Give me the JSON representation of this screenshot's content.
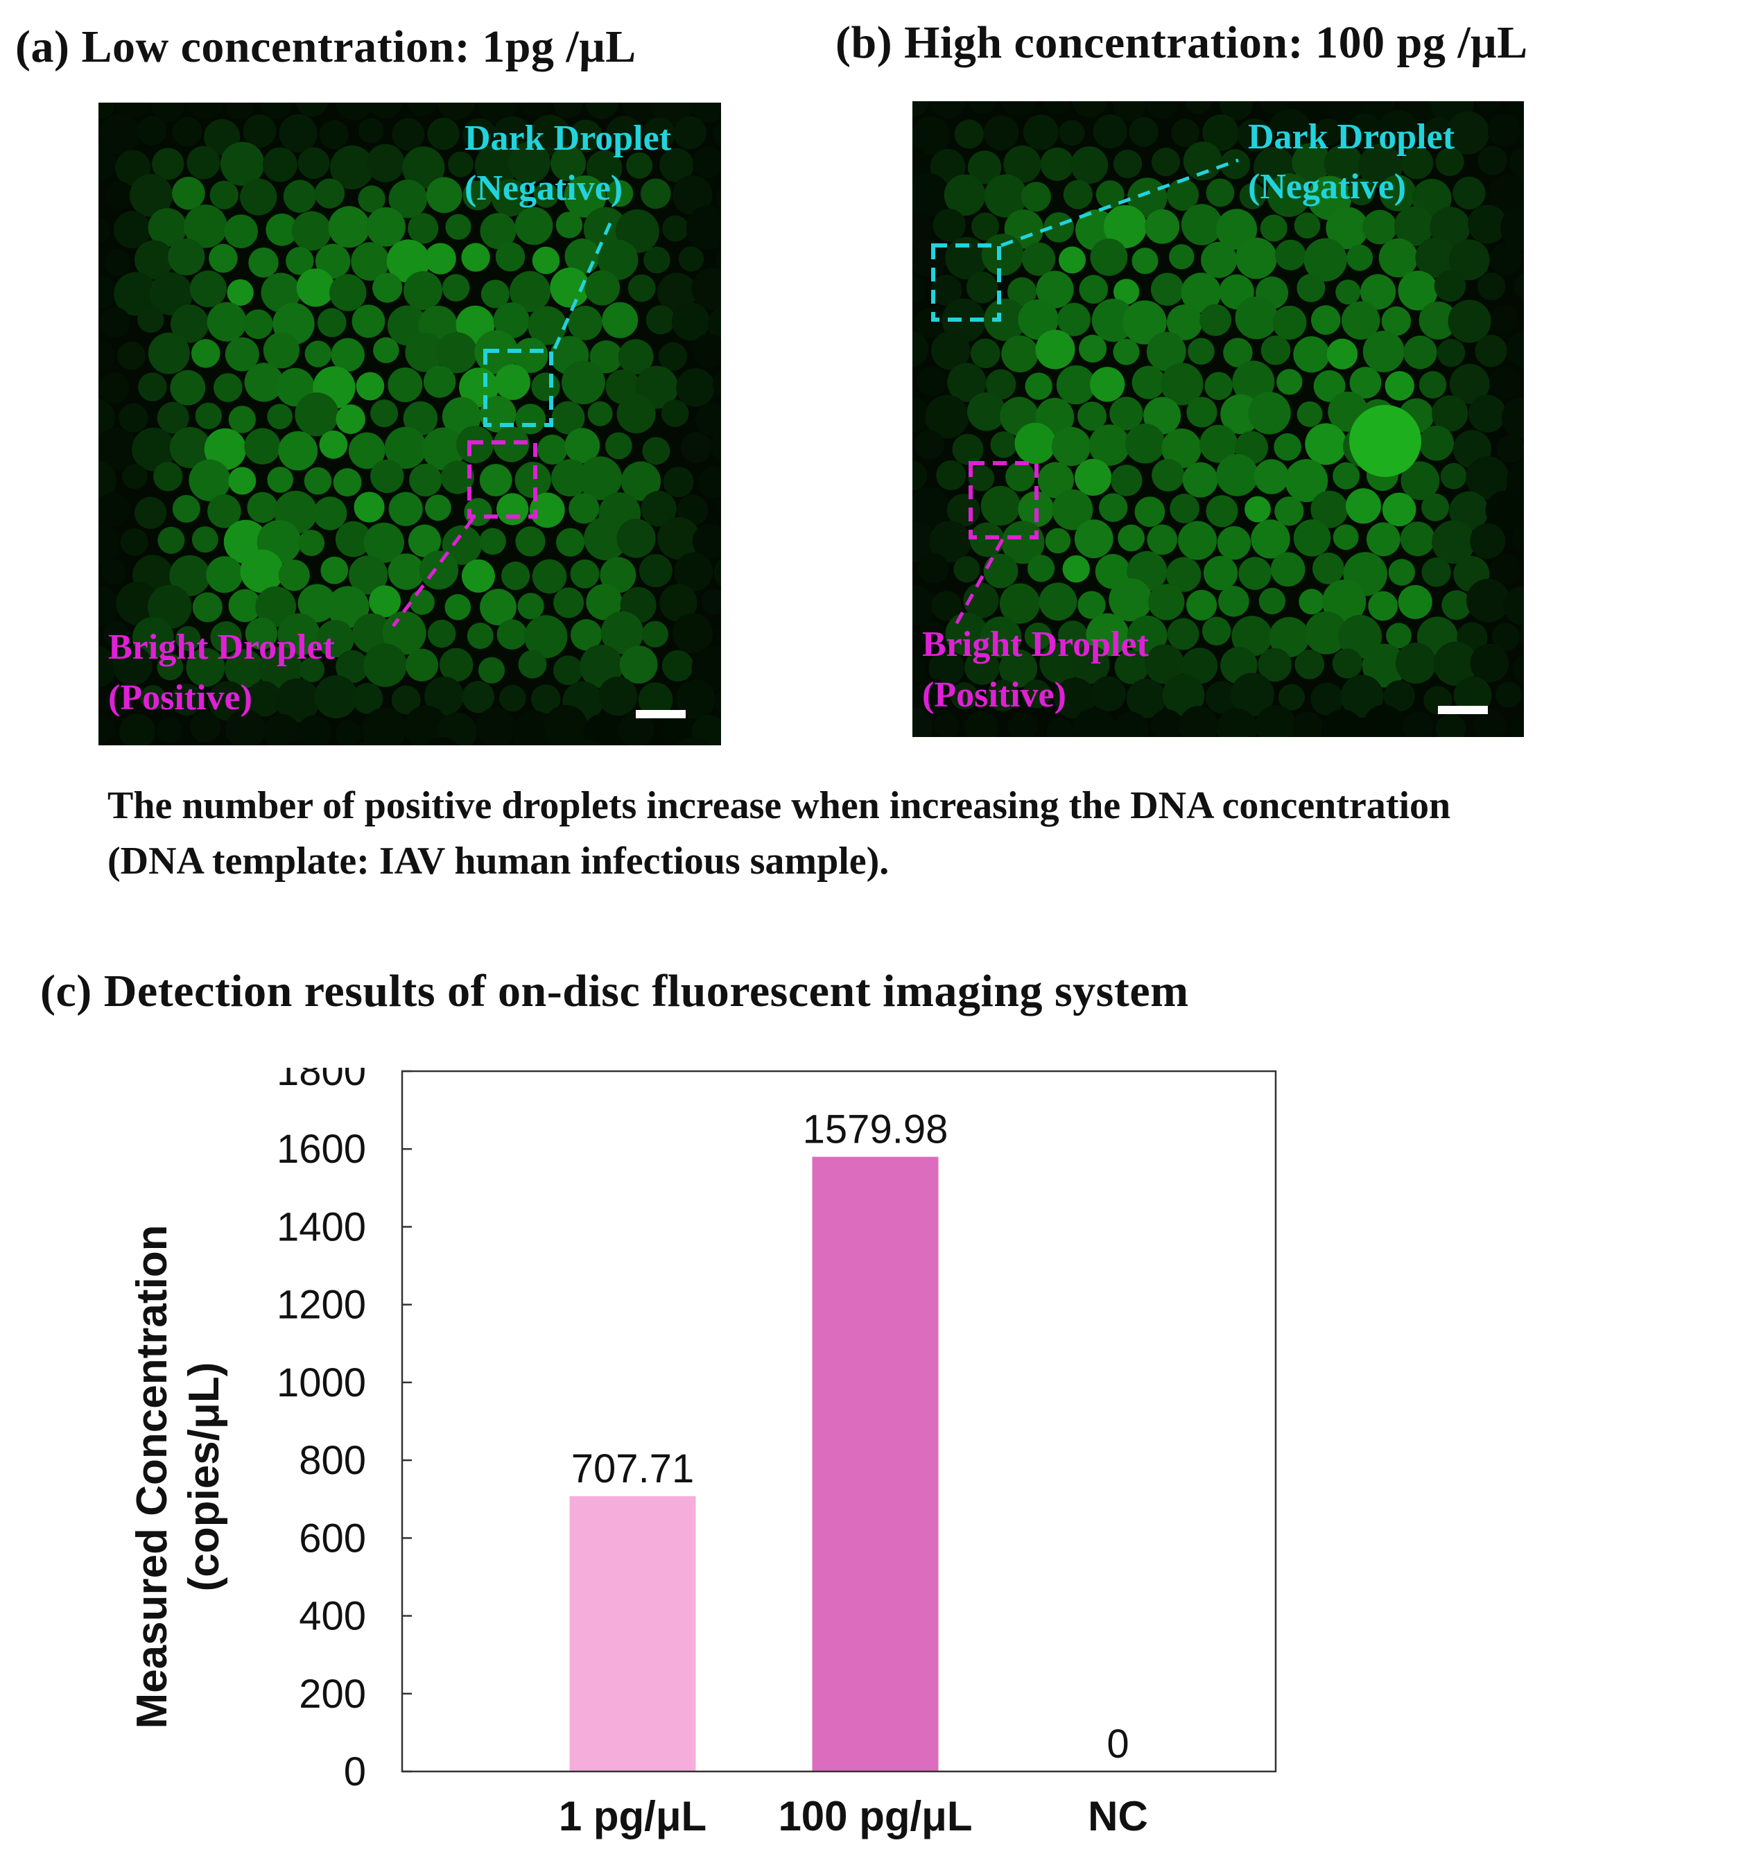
{
  "panels": {
    "a": {
      "title": "(a) Low concentration: 1pg /μL",
      "dark_label_1": "Dark Droplet",
      "dark_label_2": "(Negative)",
      "bright_label_1": "Bright Droplet",
      "bright_label_2": "(Positive)"
    },
    "b": {
      "title": "(b) High concentration: 100 pg /μL",
      "dark_label_1": "Dark Droplet",
      "dark_label_2": "(Negative)",
      "bright_label_1": "Bright Droplet",
      "bright_label_2": "(Positive)"
    }
  },
  "caption": {
    "line1": "The number of positive droplets increase when increasing the DNA concentration",
    "line2": "(DNA template: IAV human infectious sample)."
  },
  "colors": {
    "negative": "#22d3dd",
    "positive": "#e020d6",
    "droplet": "#1f8a1f",
    "background": "#020a02"
  },
  "chart_data": {
    "type": "bar",
    "title": "(c) Detection results of on-disc fluorescent imaging system",
    "ylabel_line1": "Measured Concentration",
    "ylabel_line2": "(copies/μL)",
    "categories": [
      "1 pg/μL",
      "100 pg/μL",
      "NC"
    ],
    "values": [
      707.71,
      1579.98,
      0
    ],
    "value_labels": [
      "707.71",
      "1579.98",
      "0"
    ],
    "bar_colors": [
      "#f5aedb",
      "#dc6cbd",
      "#cccccc"
    ],
    "ylim": [
      0,
      1800
    ],
    "yticks": [
      0,
      200,
      400,
      600,
      800,
      1000,
      1200,
      1400,
      1600,
      1800
    ],
    "grid": false
  }
}
